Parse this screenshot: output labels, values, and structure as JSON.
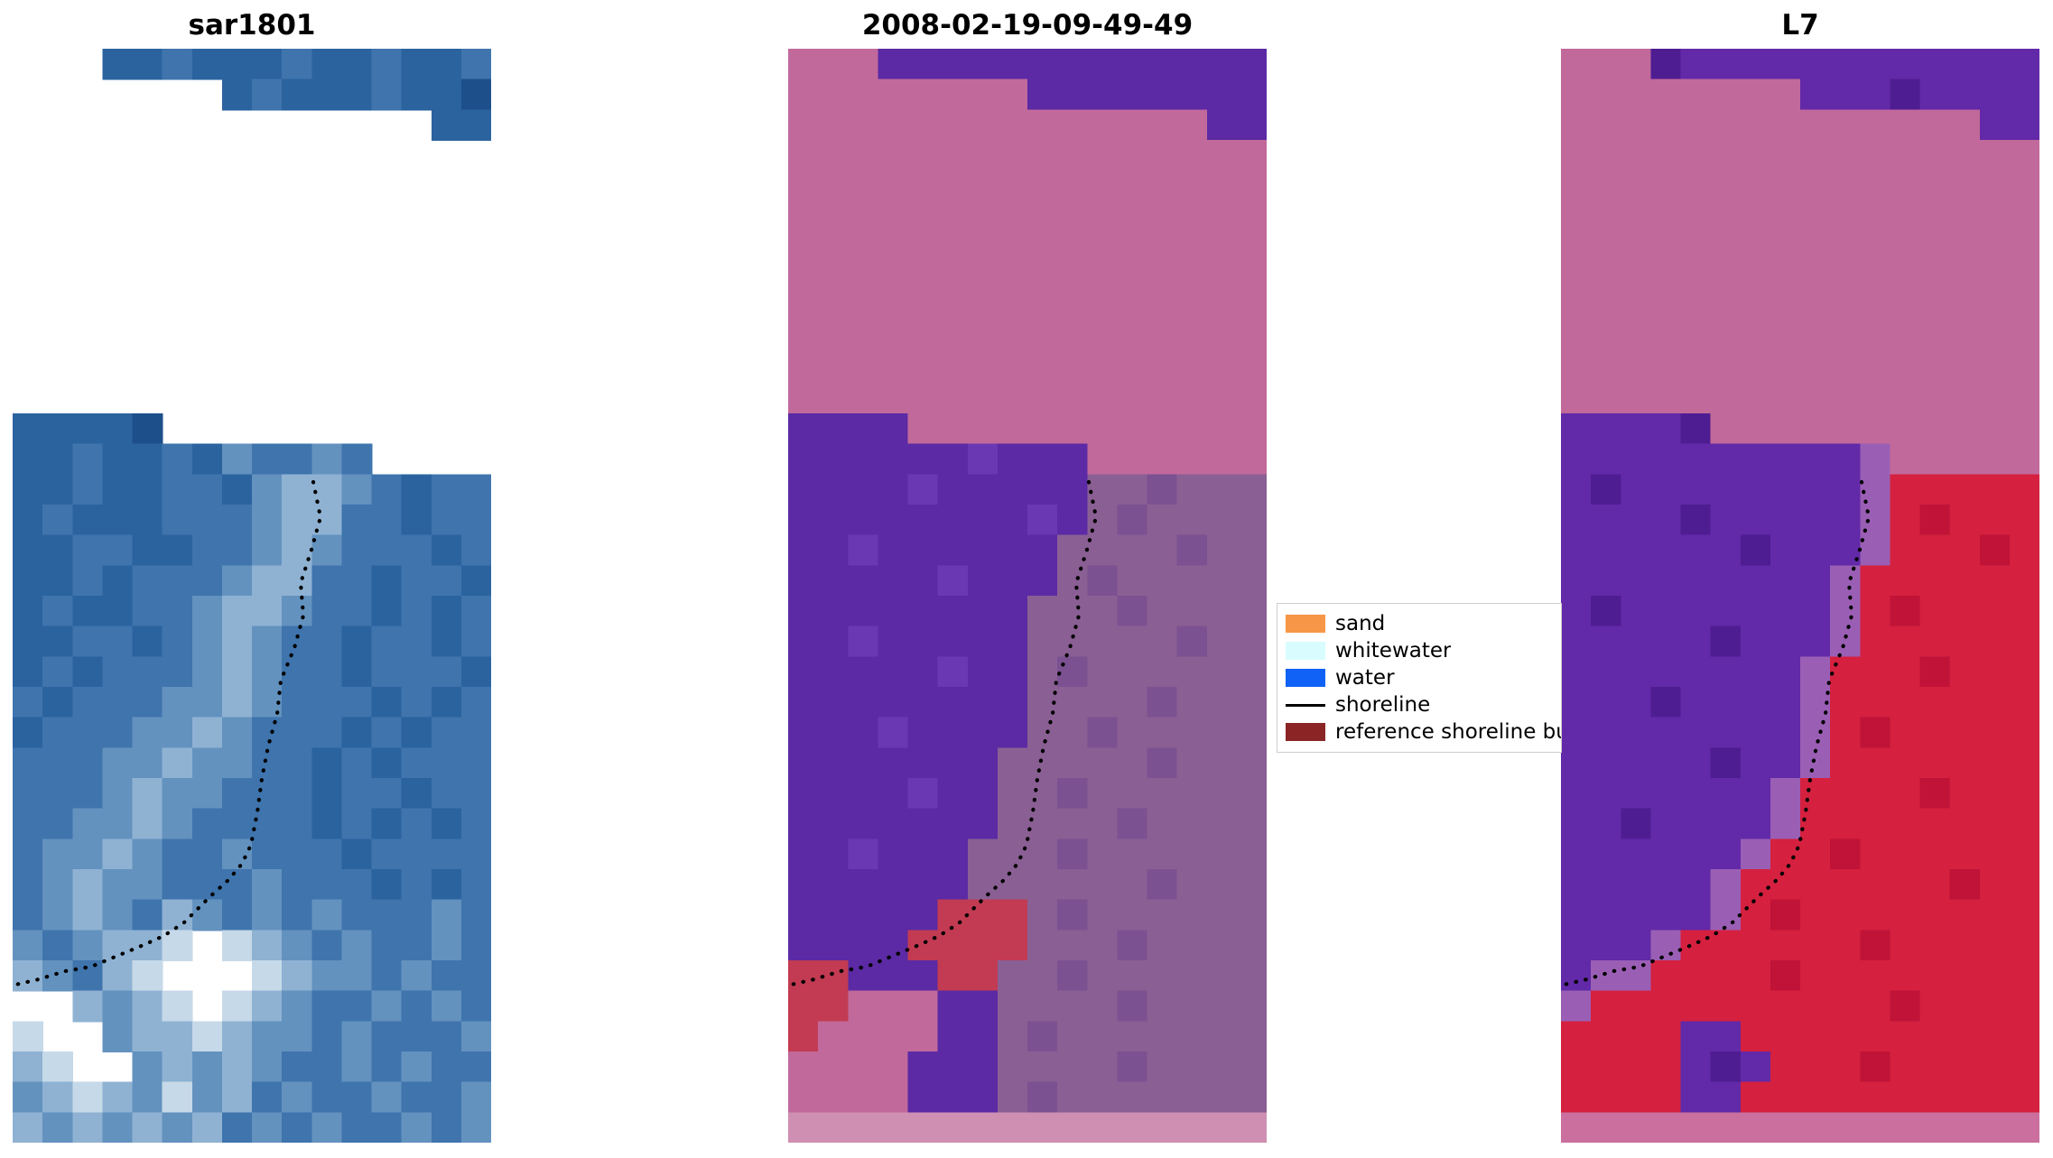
{
  "figure": {
    "background": "#ffffff"
  },
  "panels": [
    {
      "title": "sar1801"
    },
    {
      "title": "2008-02-19-09-49-49"
    },
    {
      "title": "L7"
    }
  ],
  "legend": {
    "items": [
      {
        "label": "sand",
        "color": "#f79646",
        "swatch": "patch"
      },
      {
        "label": "whitewater",
        "color": "#d9fcff",
        "swatch": "patch"
      },
      {
        "label": "water",
        "color": "#0f62f5",
        "swatch": "patch"
      },
      {
        "label": "shoreline",
        "color": "#000000",
        "swatch": "line"
      },
      {
        "label": "reference shoreline buff",
        "color": "#8b2525",
        "swatch": "patch"
      }
    ]
  },
  "chart_data": {
    "type": "heatmap",
    "title": "",
    "background": "#ffffff",
    "shoreline_color": "#000000",
    "shoreline_points": [
      [
        333,
        480
      ],
      [
        341,
        519
      ],
      [
        331,
        555
      ],
      [
        319,
        592
      ],
      [
        322,
        628
      ],
      [
        312,
        664
      ],
      [
        297,
        700
      ],
      [
        293,
        737
      ],
      [
        283,
        773
      ],
      [
        276,
        809
      ],
      [
        271,
        846
      ],
      [
        264,
        882
      ],
      [
        254,
        903
      ],
      [
        239,
        921
      ],
      [
        218,
        940
      ],
      [
        189,
        969
      ],
      [
        167,
        983
      ],
      [
        145,
        993
      ],
      [
        116,
        1005
      ],
      [
        87,
        1017
      ],
      [
        58,
        1022
      ],
      [
        29,
        1031
      ],
      [
        3,
        1037
      ]
    ],
    "panels": [
      {
        "name": "sar1801",
        "cols": 16,
        "rows": 36,
        "shoreline": true,
        "palette": {
          "f": "#1d4f8a",
          "a": "#2b639f",
          "b": "#3f74ad",
          "c": "#6392bf",
          "d": "#8fb2d3",
          "e": "#c6d9e8",
          "w": "#ffffff"
        },
        "grid": [
          "wwwaabaaabaabaab",
          "wwwwwwwabaaabaaf",
          "wwwwwwwwwwwwwwaa",
          "wwwwwwwwwwwwwwww",
          "wwwwwwwwwwwwwwww",
          "wwwwwwwwwwwwwwww",
          "wwwwwwwwwwwwwwww",
          "wwwwwwwwwwwwwwww",
          "wwwwwwwwwwwwwwww",
          "wwwwwwwwwwwwwwww",
          "wwwwwwwwwwwwwwww",
          "wwwwwwwwwwwwwwww",
          "aaaafwwwwwwwwwww",
          "aabaabacbbcbwwww",
          "aabaabbacddcbabb",
          "abaaabbbcddbbabb",
          "aabbaabbcdcbbbab",
          "aababbbcddbbabba",
          "abaabbcddcbbabab",
          "aabbabcdcbbabbab",
          "ababbbcdcbbabbba",
          "babbbccdcbbbabab",
          "abbbccdcbbbababb",
          "bbbccdccbbababbb",
          "bbbcdccbbbabbabb",
          "bbccdcbbbbababab",
          "bccdcbbcbbbabbbb",
          "bcdccbbbcbbbabab",
          "bcdcbdcbcbcbbbcb",
          "cbcddewedcbcbbcb",
          "dcbdewwwedccbcbb",
          "wwdcdewedcbbcbcb",
          "ewwcddedccbcbbbc",
          "dewwcdcdcbbcbcbb",
          "cdedcecdbcbbcbbc",
          "dcdcdcdbcbcbbcbc"
        ]
      },
      {
        "name": "2008-02-19-09-49-49",
        "cols": 16,
        "rows": 36,
        "shoreline": true,
        "palette": {
          "p": "#c2699b",
          "P": "#5b2aa4",
          "Q": "#6a38b2",
          "m": "#8a5f94",
          "M": "#7b5191",
          "r": "#c23b52",
          "q": "#cf8fb2",
          "w": "#ffffff"
        },
        "grid": [
          "pppPPPPPPPPPPPPP",
          "ppppppppPPPPPPPP",
          "ppppppppppppppPP",
          "pppppppppppppppp",
          "pppppppppppppppp",
          "pppppppppppppppp",
          "pppppppppppppppp",
          "pppppppppppppppp",
          "pppppppppppppppp",
          "pppppppppppppppp",
          "pppppppppppppppp",
          "pppppppppppppppp",
          "PPPPpppppppppppp",
          "PPPPPPQPPPpppppp",
          "PPPPQPPPPPmmMmmm",
          "PPPPPPPPQPmMmmmm",
          "PPQPPPPPPmmmmMmm",
          "PPPPPQPPPmMmmmmm",
          "PPPPPPPPmmmMmmmm",
          "PPQPPPPPmmmmmMmm",
          "PPPPPQPPmMmmmmmm",
          "PPPPPPPPmmmmMmmm",
          "PPPQPPPPmmMmmmmm",
          "PPPPPPPmmmmmMmmm",
          "PPPPQPPmmMmmmmmm",
          "PPPPPPPmmmmMmmmm",
          "PPQPPPmmmMmmmmmm",
          "PPPPPPmmmmmmMmmm",
          "PPPPPrrrmMmmmmmm",
          "PPPPrrrrmmmMmmmm",
          "rrPPPrrmmMmmmmmm",
          "rrpppPPmmmmMmmmm",
          "rppppPPmMmmmmmmm",
          "ppppPPPmmmmMmmmm",
          "ppppPPPmMmmmmmmm",
          "qqqqqqqqqqqqqqqq"
        ]
      },
      {
        "name": "L7",
        "cols": 16,
        "rows": 36,
        "shoreline": true,
        "palette": {
          "p": "#c2699b",
          "P": "#6229a8",
          "V": "#4f1d92",
          "l": "#9a5fb5",
          "r": "#d5203f",
          "R": "#c01337",
          "q": "#ca6f9e",
          "w": "#ffffff"
        },
        "grid": [
          "pppVPPPPPPPPPPPP",
          "ppppppppPPPVPPPP",
          "ppppppppppppppPP",
          "pppppppppppppppp",
          "pppppppppppppppp",
          "pppppppppppppppp",
          "pppppppppppppppp",
          "pppppppppppppppp",
          "pppppppppppppppp",
          "pppppppppppppppp",
          "pppppppppppppppp",
          "pppppppppppppppp",
          "PPPPVppppppppppp",
          "PPPPPPPPPPlppppp",
          "PVPPPPPPPPlrrrrr",
          "PPPPVPPPPPlrRrrr",
          "PPPPPPVPPPlrrrRr",
          "PPPPPPPPPlrrrrrr",
          "PVPPPPPPPlrRrrrr",
          "PPPPPVPPPlrrrrrr",
          "PPPPPPPPlrrrRrrr",
          "PPPVPPPPlrrrrrrr",
          "PPPPPPPPlrRrrrrr",
          "PPPPPVPPlrrrrrrr",
          "PPPPPPPlrrrrRrrr",
          "PPVPPPPlrrrrrrrr",
          "PPPPPPlrrRrrrrrr",
          "PPPPPlrrrrrrrRrr",
          "PPPPPlrRrrrrrrrr",
          "PPPlrrrrrrRrrrrr",
          "PllrrrrRrrrrrrrr",
          "lrrrrrrrrrrRrrrr",
          "rrrrPPrrrrrrrrrr",
          "rrrrPVPrrrRrrrrr",
          "rrrrPPrrrrrrrrrr",
          "qqqqqqqqqqqqqqqq"
        ]
      }
    ]
  }
}
